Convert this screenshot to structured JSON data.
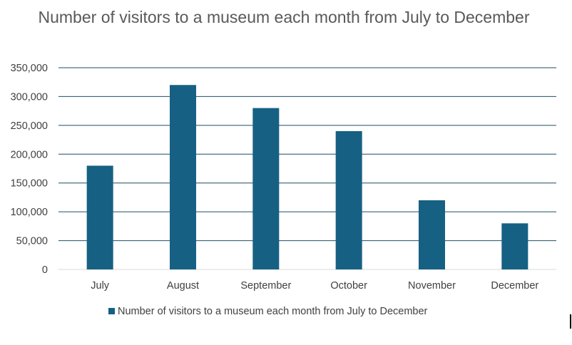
{
  "chart_data": {
    "type": "bar",
    "title": "Number of visitors to a museum each month from July to December",
    "categories": [
      "July",
      "August",
      "September",
      "October",
      "November",
      "December"
    ],
    "series": [
      {
        "name": "Number of visitors to a museum each month from July to December",
        "values": [
          180000,
          320000,
          280000,
          240000,
          120000,
          80000
        ],
        "color": "#166083"
      }
    ],
    "ylim": [
      0,
      350000
    ],
    "yticks": [
      0,
      50000,
      100000,
      150000,
      200000,
      250000,
      300000,
      350000
    ],
    "ytick_labels": [
      "0",
      "50,000",
      "100,000",
      "150,000",
      "200,000",
      "250,000",
      "300,000",
      "350,000"
    ],
    "xlabel": "",
    "ylabel": "",
    "grid": true,
    "legend": "bottom",
    "gridline_color": "#1f4e66",
    "axis_label_color": "#404040"
  }
}
